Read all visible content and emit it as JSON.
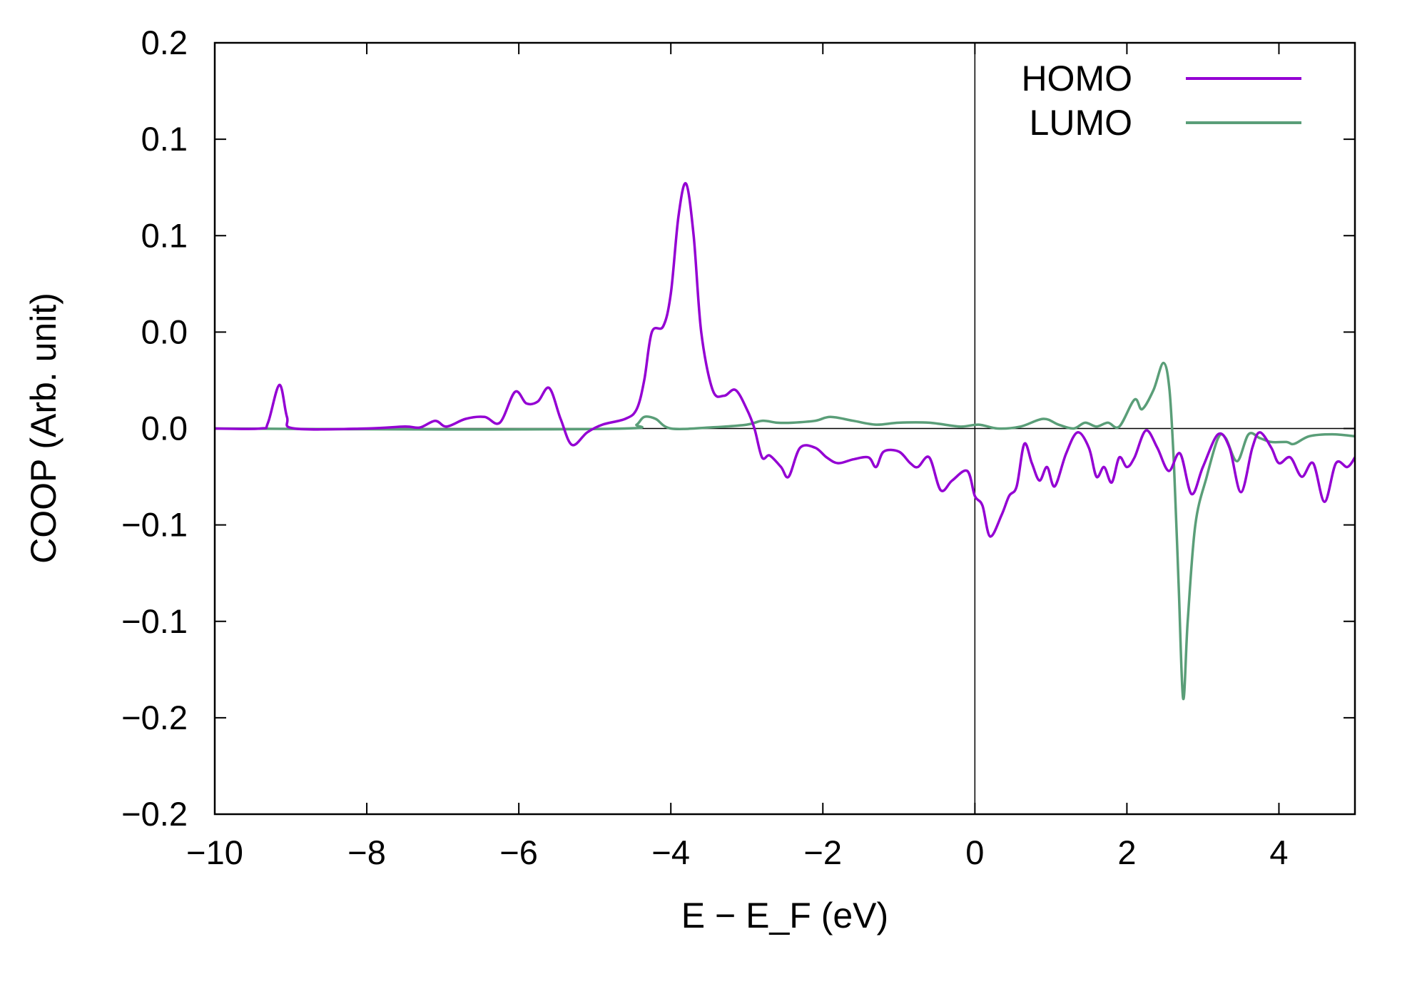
{
  "chart_data": {
    "type": "line",
    "title": "",
    "xlabel": "E − E_F (eV)",
    "xlabel_parts": {
      "e": "E",
      "minus": " − ",
      "ef": "E",
      "sub": "F",
      "unit": " (eV)"
    },
    "ylabel": "COOP (Arb. unit)",
    "xlim": [
      -10,
      5
    ],
    "ylim": [
      -0.2,
      0.2
    ],
    "grid": false,
    "legend_position": "top-right",
    "x_ticks": [
      -10,
      -8,
      -6,
      -4,
      -2,
      0,
      2,
      4
    ],
    "x_tick_labels": [
      "−10",
      "−8",
      "−6",
      "−4",
      "−2",
      "0",
      "2",
      "4"
    ],
    "y_ticks": [
      0.2,
      0.15,
      0.1,
      0.05,
      0,
      -0.05,
      -0.1,
      -0.15,
      -0.2
    ],
    "y_tick_labels": [
      "0.2",
      "0.1",
      "0.1",
      "0.0",
      "0.0",
      "−0.1",
      "−0.1",
      "−0.2",
      "−0.2"
    ],
    "reference_lines": {
      "x": 0,
      "y": 0
    },
    "series": [
      {
        "name": "HOMO",
        "color": "#9400d3",
        "points": [
          [
            -10,
            0
          ],
          [
            -9.4,
            0
          ],
          [
            -9.3,
            0.003
          ],
          [
            -9.15,
            0.0226
          ],
          [
            -9.05,
            0.006
          ],
          [
            -8.95,
            0
          ],
          [
            -8,
            0
          ],
          [
            -7.5,
            0.001
          ],
          [
            -7.3,
            0.0005
          ],
          [
            -7.1,
            0.004
          ],
          [
            -6.95,
            0.001
          ],
          [
            -6.7,
            0.005
          ],
          [
            -6.45,
            0.006
          ],
          [
            -6.25,
            0.003
          ],
          [
            -6.05,
            0.019
          ],
          [
            -5.9,
            0.013
          ],
          [
            -5.75,
            0.014
          ],
          [
            -5.6,
            0.021
          ],
          [
            -5.45,
            0.005
          ],
          [
            -5.3,
            -0.0085
          ],
          [
            -5.1,
            -0.002
          ],
          [
            -4.9,
            0.002
          ],
          [
            -4.6,
            0.005
          ],
          [
            -4.45,
            0.01
          ],
          [
            -4.35,
            0.025
          ],
          [
            -4.25,
            0.05
          ],
          [
            -4.1,
            0.053
          ],
          [
            -4.0,
            0.07
          ],
          [
            -3.9,
            0.11
          ],
          [
            -3.8,
            0.127
          ],
          [
            -3.7,
            0.1
          ],
          [
            -3.6,
            0.05
          ],
          [
            -3.45,
            0.02
          ],
          [
            -3.3,
            0.017
          ],
          [
            -3.15,
            0.02
          ],
          [
            -3.0,
            0.01
          ],
          [
            -2.9,
            0.0
          ],
          [
            -2.8,
            -0.015
          ],
          [
            -2.7,
            -0.014
          ],
          [
            -2.55,
            -0.02
          ],
          [
            -2.45,
            -0.025
          ],
          [
            -2.3,
            -0.01
          ],
          [
            -2.1,
            -0.01
          ],
          [
            -1.95,
            -0.015
          ],
          [
            -1.8,
            -0.018
          ],
          [
            -1.6,
            -0.016
          ],
          [
            -1.4,
            -0.015
          ],
          [
            -1.3,
            -0.02
          ],
          [
            -1.2,
            -0.012
          ],
          [
            -1.0,
            -0.012
          ],
          [
            -0.85,
            -0.018
          ],
          [
            -0.75,
            -0.02
          ],
          [
            -0.6,
            -0.015
          ],
          [
            -0.45,
            -0.032
          ],
          [
            -0.3,
            -0.027
          ],
          [
            -0.1,
            -0.022
          ],
          [
            0.0,
            -0.035
          ],
          [
            0.1,
            -0.04
          ],
          [
            0.2,
            -0.056
          ],
          [
            0.35,
            -0.045
          ],
          [
            0.45,
            -0.035
          ],
          [
            0.55,
            -0.03
          ],
          [
            0.65,
            -0.008
          ],
          [
            0.75,
            -0.018
          ],
          [
            0.85,
            -0.027
          ],
          [
            0.95,
            -0.02
          ],
          [
            1.05,
            -0.03
          ],
          [
            1.2,
            -0.013
          ],
          [
            1.35,
            -0.002
          ],
          [
            1.5,
            -0.01
          ],
          [
            1.6,
            -0.025
          ],
          [
            1.7,
            -0.02
          ],
          [
            1.8,
            -0.028
          ],
          [
            1.9,
            -0.015
          ],
          [
            2.0,
            -0.02
          ],
          [
            2.1,
            -0.015
          ],
          [
            2.25,
            -0.001
          ],
          [
            2.4,
            -0.01
          ],
          [
            2.55,
            -0.022
          ],
          [
            2.7,
            -0.013
          ],
          [
            2.85,
            -0.034
          ],
          [
            3.0,
            -0.02
          ],
          [
            3.2,
            -0.003
          ],
          [
            3.35,
            -0.01
          ],
          [
            3.5,
            -0.033
          ],
          [
            3.65,
            -0.01
          ],
          [
            3.75,
            -0.002
          ],
          [
            3.9,
            -0.01
          ],
          [
            4.0,
            -0.018
          ],
          [
            4.15,
            -0.015
          ],
          [
            4.3,
            -0.025
          ],
          [
            4.45,
            -0.018
          ],
          [
            4.6,
            -0.038
          ],
          [
            4.75,
            -0.018
          ],
          [
            4.9,
            -0.02
          ],
          [
            5.0,
            -0.015
          ]
        ]
      },
      {
        "name": "LUMO",
        "color": "#5a9e78",
        "points": [
          [
            -10,
            0
          ],
          [
            -7,
            -0.0005
          ],
          [
            -4.6,
            0
          ],
          [
            -4.45,
            0.002
          ],
          [
            -4.35,
            0.006
          ],
          [
            -4.2,
            0.005
          ],
          [
            -4.0,
            0.0
          ],
          [
            -3.5,
            0.0005
          ],
          [
            -3.0,
            0.002
          ],
          [
            -2.8,
            0.004
          ],
          [
            -2.6,
            0.003
          ],
          [
            -2.4,
            0.003
          ],
          [
            -2.1,
            0.004
          ],
          [
            -1.9,
            0.006
          ],
          [
            -1.6,
            0.004
          ],
          [
            -1.3,
            0.002
          ],
          [
            -1.0,
            0.003
          ],
          [
            -0.6,
            0.003
          ],
          [
            -0.2,
            0.001
          ],
          [
            0.05,
            0.002
          ],
          [
            0.3,
            0.0
          ],
          [
            0.6,
            0.001
          ],
          [
            0.9,
            0.005
          ],
          [
            1.1,
            0.002
          ],
          [
            1.3,
            0.0
          ],
          [
            1.45,
            0.003
          ],
          [
            1.6,
            0.001
          ],
          [
            1.75,
            0.003
          ],
          [
            1.9,
            0.001
          ],
          [
            2.1,
            0.015
          ],
          [
            2.2,
            0.01
          ],
          [
            2.35,
            0.02
          ],
          [
            2.48,
            0.034
          ],
          [
            2.56,
            0.02
          ],
          [
            2.62,
            -0.02
          ],
          [
            2.68,
            -0.08
          ],
          [
            2.74,
            -0.14
          ],
          [
            2.8,
            -0.1
          ],
          [
            2.9,
            -0.05
          ],
          [
            3.05,
            -0.025
          ],
          [
            3.2,
            -0.005
          ],
          [
            3.3,
            -0.005
          ],
          [
            3.45,
            -0.017
          ],
          [
            3.6,
            -0.003
          ],
          [
            3.75,
            -0.005
          ],
          [
            3.9,
            -0.007
          ],
          [
            4.1,
            -0.007
          ],
          [
            4.2,
            -0.008
          ],
          [
            4.4,
            -0.004
          ],
          [
            4.7,
            -0.003
          ],
          [
            5.0,
            -0.004
          ]
        ]
      }
    ]
  }
}
